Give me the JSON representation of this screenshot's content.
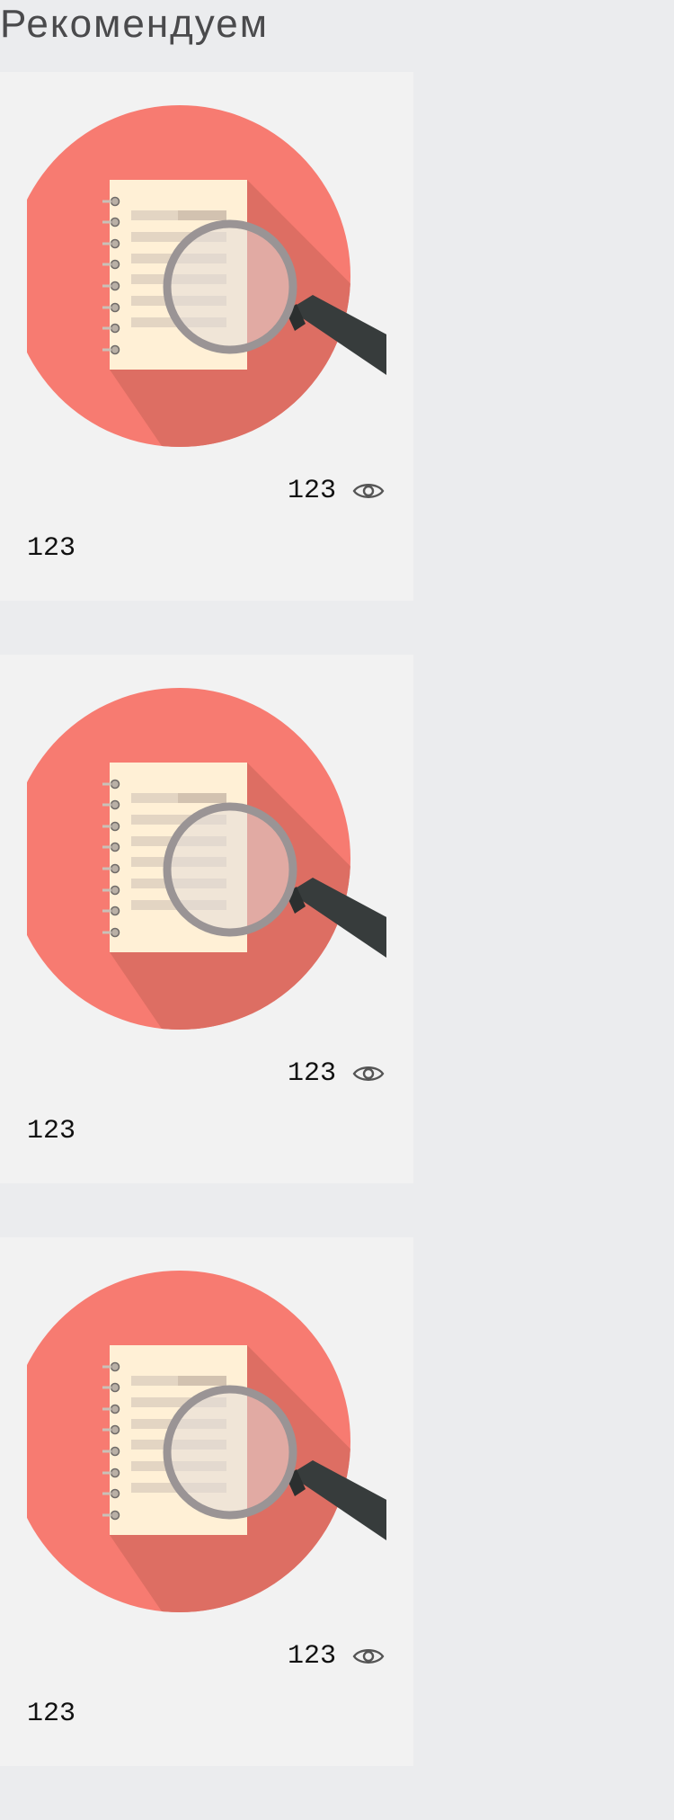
{
  "section": {
    "title": "Рекомендуем"
  },
  "cards": [
    {
      "views": "123",
      "title": "123"
    },
    {
      "views": "123",
      "title": "123"
    },
    {
      "views": "123",
      "title": "123"
    }
  ],
  "icons": {
    "views": "eye-icon",
    "illustration": "notebook-magnifier-icon"
  },
  "colors": {
    "background": "#ebecee",
    "card": "#f2f2f2",
    "circle": "#f77b71",
    "shadow": "#dd6e63",
    "paper": "#fff0d6",
    "lens_frame": "#9a9495",
    "handle": "#373c3c",
    "heading": "#4a4a4c"
  }
}
